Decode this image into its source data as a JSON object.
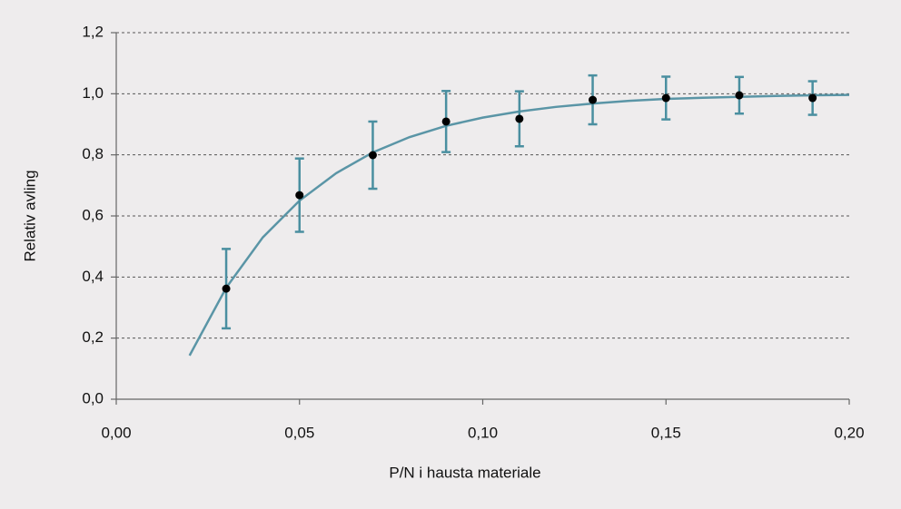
{
  "chart_data": {
    "type": "scatter",
    "x_label": "P/N i hausta materiale",
    "y_label": "Relativ avling",
    "xlim": [
      0,
      0.2
    ],
    "ylim": [
      0,
      1.2
    ],
    "xticks": [
      {
        "value": 0,
        "label": "0,00"
      },
      {
        "value": 0.05,
        "label": "0,05"
      },
      {
        "value": 0.1,
        "label": "0,10"
      },
      {
        "value": 0.15,
        "label": "0,15"
      },
      {
        "value": 0.2,
        "label": "0,20"
      }
    ],
    "yticks": [
      {
        "value": 0,
        "label": "0,0"
      },
      {
        "value": 0.2,
        "label": "0,2"
      },
      {
        "value": 0.4,
        "label": "0,4"
      },
      {
        "value": 0.6,
        "label": "0,6"
      },
      {
        "value": 0.8,
        "label": "0,8"
      },
      {
        "value": 1.0,
        "label": "1,0"
      },
      {
        "value": 1.2,
        "label": "1,2"
      }
    ],
    "grid": true,
    "points": {
      "color": "#000000",
      "error_color": "#4a8fa0",
      "x": [
        0.03,
        0.05,
        0.07,
        0.09,
        0.11,
        0.13,
        0.15,
        0.17,
        0.19
      ],
      "values": [
        0.362,
        0.668,
        0.799,
        0.909,
        0.918,
        0.98,
        0.986,
        0.995,
        0.986
      ],
      "errors": [
        0.13,
        0.12,
        0.11,
        0.1,
        0.09,
        0.08,
        0.07,
        0.06,
        0.055
      ]
    },
    "curve": {
      "color": "#5a95a6",
      "x": [
        0.02,
        0.03,
        0.04,
        0.05,
        0.06,
        0.07,
        0.08,
        0.09,
        0.1,
        0.11,
        0.12,
        0.13,
        0.14,
        0.15,
        0.16,
        0.17,
        0.18,
        0.19,
        0.2
      ],
      "values": [
        0.143,
        0.365,
        0.53,
        0.65,
        0.74,
        0.808,
        0.858,
        0.895,
        0.922,
        0.942,
        0.957,
        0.968,
        0.977,
        0.983,
        0.987,
        0.99,
        0.993,
        0.995,
        0.996
      ]
    }
  }
}
